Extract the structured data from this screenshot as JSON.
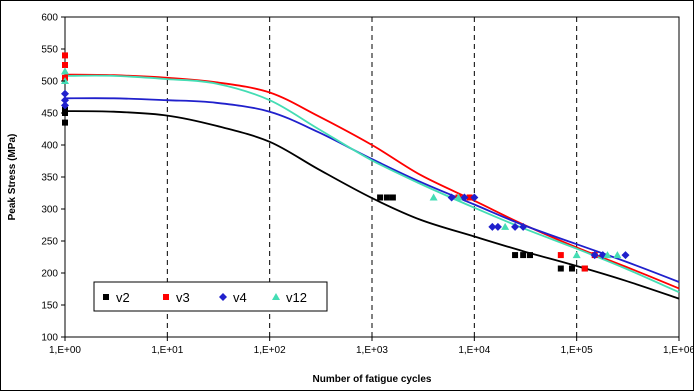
{
  "chart_data": {
    "type": "scatter",
    "title": "",
    "xlabel": "Number of fatigue cycles",
    "ylabel": "Peak Stress (MPa)",
    "x_scale": "log",
    "xlim": [
      1,
      1000000
    ],
    "ylim": [
      100,
      600
    ],
    "x_ticks": [
      1,
      10,
      100,
      1000,
      10000,
      100000,
      1000000
    ],
    "x_tick_labels": [
      "1,E+00",
      "1,E+01",
      "1,E+02",
      "1,E+03",
      "1,E+04",
      "1,E+05",
      "1,E+06"
    ],
    "y_ticks": [
      100,
      150,
      200,
      250,
      300,
      350,
      400,
      450,
      500,
      550,
      600
    ],
    "y_tick_labels": [
      "100",
      "150",
      "200",
      "250",
      "300",
      "350",
      "400",
      "450",
      "500",
      "550",
      "600"
    ],
    "grid": {
      "vertical": "dashed",
      "horizontal": false
    },
    "legend_position": "bottom-left",
    "series": [
      {
        "name": "v2",
        "color": "#000000",
        "marker": "square",
        "points": [
          [
            1,
            435
          ],
          [
            1,
            450
          ],
          [
            1,
            455
          ],
          [
            1200,
            318
          ],
          [
            1400,
            318
          ],
          [
            1600,
            318
          ],
          [
            25000,
            228
          ],
          [
            30000,
            228
          ],
          [
            35000,
            228
          ],
          [
            70000,
            207
          ],
          [
            90000,
            207
          ],
          [
            120000,
            207
          ]
        ],
        "fit_line": [
          [
            1,
            453
          ],
          [
            3,
            452
          ],
          [
            10,
            446
          ],
          [
            30,
            430
          ],
          [
            100,
            405
          ],
          [
            300,
            362
          ],
          [
            1000,
            317
          ],
          [
            3000,
            283
          ],
          [
            10000,
            257
          ],
          [
            30000,
            234
          ],
          [
            100000,
            211
          ],
          [
            300000,
            188
          ],
          [
            1000000,
            160
          ]
        ]
      },
      {
        "name": "v3",
        "color": "#ff0000",
        "marker": "square",
        "points": [
          [
            1,
            540
          ],
          [
            1,
            525
          ],
          [
            1,
            505
          ],
          [
            7000,
            318
          ],
          [
            9000,
            318
          ],
          [
            70000,
            228
          ],
          [
            120000,
            207
          ],
          [
            150000,
            228
          ]
        ],
        "fit_line": [
          [
            1,
            510
          ],
          [
            3,
            509
          ],
          [
            10,
            505
          ],
          [
            30,
            498
          ],
          [
            100,
            482
          ],
          [
            300,
            445
          ],
          [
            1000,
            400
          ],
          [
            3000,
            353
          ],
          [
            10000,
            313
          ],
          [
            30000,
            276
          ],
          [
            100000,
            240
          ],
          [
            300000,
            210
          ],
          [
            1000000,
            176
          ]
        ]
      },
      {
        "name": "v4",
        "color": "#2020cc",
        "marker": "diamond",
        "points": [
          [
            1,
            480
          ],
          [
            1,
            470
          ],
          [
            1,
            462
          ],
          [
            6000,
            318
          ],
          [
            8000,
            318
          ],
          [
            10000,
            318
          ],
          [
            15000,
            272
          ],
          [
            17000,
            272
          ],
          [
            25000,
            272
          ],
          [
            30000,
            272
          ],
          [
            150000,
            228
          ],
          [
            180000,
            228
          ],
          [
            300000,
            228
          ]
        ],
        "fit_line": [
          [
            1,
            473
          ],
          [
            3,
            473
          ],
          [
            10,
            470
          ],
          [
            30,
            466
          ],
          [
            100,
            452
          ],
          [
            300,
            420
          ],
          [
            1000,
            378
          ],
          [
            3000,
            342
          ],
          [
            10000,
            307
          ],
          [
            30000,
            275
          ],
          [
            100000,
            245
          ],
          [
            300000,
            218
          ],
          [
            1000000,
            186
          ]
        ]
      },
      {
        "name": "v12",
        "color": "#44ddb4",
        "marker": "triangle",
        "points": [
          [
            1,
            515
          ],
          [
            1,
            500
          ],
          [
            4000,
            318
          ],
          [
            7000,
            318
          ],
          [
            20000,
            272
          ],
          [
            100000,
            228
          ],
          [
            200000,
            228
          ],
          [
            250000,
            228
          ]
        ],
        "fit_line": [
          [
            1,
            508
          ],
          [
            3,
            508
          ],
          [
            10,
            503
          ],
          [
            30,
            496
          ],
          [
            100,
            470
          ],
          [
            300,
            425
          ],
          [
            1000,
            376
          ],
          [
            3000,
            339
          ],
          [
            10000,
            302
          ],
          [
            30000,
            270
          ],
          [
            100000,
            238
          ],
          [
            300000,
            207
          ],
          [
            1000000,
            170
          ]
        ]
      }
    ]
  }
}
